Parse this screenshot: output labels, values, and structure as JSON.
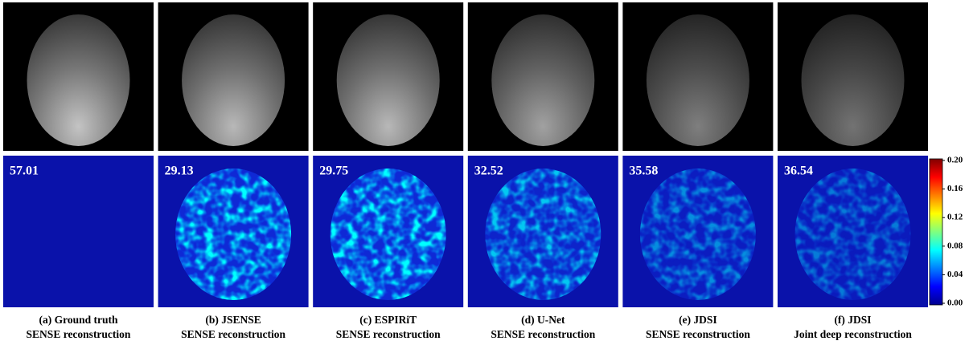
{
  "panels": [
    {
      "psnr": "57.01",
      "caption": [
        "(a) Ground truth",
        "SENSE reconstruction"
      ]
    },
    {
      "psnr": "29.13",
      "caption": [
        "(b) JSENSE",
        "SENSE reconstruction"
      ]
    },
    {
      "psnr": "29.75",
      "caption": [
        "(c) ESPIRiT",
        "SENSE reconstruction"
      ]
    },
    {
      "psnr": "32.52",
      "caption": [
        "(d) U-Net",
        "SENSE reconstruction"
      ]
    },
    {
      "psnr": "35.58",
      "caption": [
        "(e) JDSI",
        "SENSE reconstruction"
      ]
    },
    {
      "psnr": "36.54",
      "caption": [
        "(f) JDSI",
        "Joint deep reconstruction"
      ]
    }
  ],
  "colorbar": {
    "ticks": [
      "0.20",
      "0.16",
      "0.12",
      "0.08",
      "0.04",
      "0.00"
    ]
  }
}
